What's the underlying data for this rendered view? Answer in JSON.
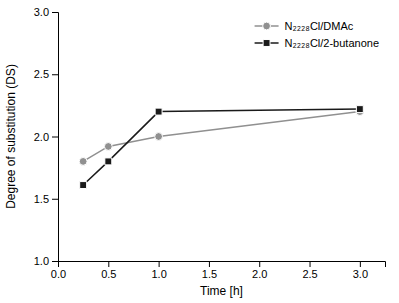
{
  "chart_data": {
    "type": "line",
    "x_label": "Time [h]",
    "y_label": "Degree of substitution (DS)",
    "x": [
      0.25,
      0.5,
      1.0,
      3.0
    ],
    "series": [
      {
        "name": "N₂₂₂₈Cl/DMAc",
        "color": "#909090",
        "marker": "circle",
        "line_style": "solid",
        "values": [
          1.8,
          1.92,
          2.0,
          2.2
        ]
      },
      {
        "name": "N₂₂₂₈Cl/2-butanone",
        "color": "#1a1a1a",
        "marker": "square",
        "line_style": "solid",
        "values": [
          1.61,
          1.8,
          2.2,
          2.22
        ]
      }
    ],
    "xlim": [
      0.0,
      3.25
    ],
    "ylim": [
      1.0,
      3.0
    ],
    "xticks": [
      {
        "value": 0.0,
        "label": "0.0"
      },
      0.5,
      {
        "value": 1.0,
        "label": "1.0"
      },
      1.5,
      {
        "value": 2.0,
        "label": "2.0"
      },
      2.5,
      {
        "value": 3.0,
        "label": "3.0"
      }
    ],
    "yticks": [
      {
        "value": 1.0,
        "label": "1.0"
      },
      1.5,
      {
        "value": 2.0,
        "label": "2.0"
      },
      2.5,
      {
        "value": 3.0,
        "label": "3.0"
      }
    ],
    "grid": false,
    "legend": "upper right"
  }
}
